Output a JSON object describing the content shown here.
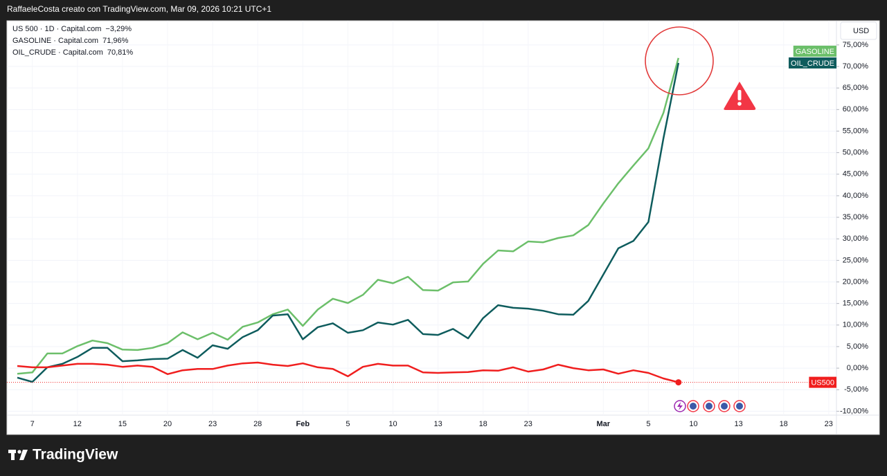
{
  "chart_data": {
    "type": "line",
    "title": "RaffaeleCosta creato con TradingView.com, Mar 09, 2026 10:21 UTC+1",
    "currency": "USD",
    "brand": "TradingView",
    "grid": true,
    "bold_categories": [
      "Feb",
      "Mar"
    ],
    "categories": [
      null,
      "7",
      null,
      null,
      "12",
      null,
      null,
      "15",
      null,
      null,
      "20",
      null,
      null,
      "23",
      null,
      null,
      "28",
      null,
      null,
      "Feb",
      null,
      null,
      "5",
      null,
      null,
      "10",
      null,
      null,
      "13",
      null,
      null,
      "18",
      null,
      null,
      "23",
      null,
      null,
      null,
      null,
      "Mar",
      null,
      null,
      "5",
      null,
      null,
      "10",
      null,
      null,
      "13",
      null,
      null,
      "18",
      null,
      null,
      "23"
    ],
    "series": [
      {
        "name": "US500",
        "legend": "US 500 · 1D · Capital.com",
        "change_label": "−3,29%",
        "color": "#f01e1e",
        "values": [
          0.5,
          0.2,
          0.2,
          0.6,
          1.0,
          1.0,
          0.8,
          0.3,
          0.6,
          0.3,
          -1.4,
          -0.5,
          -0.2,
          -0.2,
          0.6,
          1.1,
          1.3,
          0.8,
          0.5,
          1.1,
          0.2,
          -0.2,
          -1.9,
          0.3,
          1.0,
          0.6,
          0.6,
          -1.0,
          -1.1,
          -1.0,
          -0.9,
          -0.5,
          -0.6,
          0.2,
          -0.8,
          -0.3,
          0.8,
          0,
          -0.5,
          -0.3,
          -1.3,
          -0.5,
          -1.1,
          -2.4,
          -3.29,
          null,
          null,
          null,
          null,
          null,
          null,
          null,
          null,
          null,
          null
        ]
      },
      {
        "name": "GASOLINE",
        "legend": "GASOLINE · Capital.com",
        "change_label": "71,96%",
        "color": "#6cbf6a",
        "values": [
          -1.3,
          -1.0,
          3.4,
          3.4,
          5.1,
          6.4,
          5.8,
          4.3,
          4.2,
          4.7,
          5.8,
          8.3,
          6.7,
          8.2,
          6.6,
          9.6,
          10.6,
          12.5,
          13.6,
          9.8,
          13.6,
          16.1,
          15.1,
          17.0,
          20.5,
          19.7,
          21.2,
          18.1,
          18.0,
          19.9,
          20.1,
          24.2,
          27.3,
          27.1,
          29.4,
          29.2,
          30.2,
          30.8,
          33.2,
          38.2,
          42.9,
          47.0,
          51.0,
          59.2,
          71.96,
          null,
          null,
          null,
          null,
          null,
          null,
          null,
          null,
          null,
          null
        ]
      },
      {
        "name": "OIL_CRUDE",
        "legend": "OIL_CRUDE · Capital.com",
        "change_label": "70,81%",
        "color": "#0e5c5d",
        "values": [
          -2.2,
          -3.2,
          0.2,
          1.0,
          2.6,
          4.7,
          4.7,
          1.6,
          1.8,
          2.1,
          2.2,
          4.2,
          2.4,
          5.3,
          4.5,
          7.2,
          8.8,
          12.2,
          12.5,
          6.7,
          9.5,
          10.4,
          8.2,
          8.8,
          10.6,
          10.1,
          11.2,
          7.9,
          7.7,
          9.1,
          6.9,
          11.6,
          14.6,
          14.0,
          13.8,
          13.3,
          12.5,
          12.4,
          15.6,
          21.7,
          27.8,
          29.5,
          33.9,
          53.3,
          70.81,
          null,
          null,
          null,
          null,
          null,
          null,
          null,
          null,
          null,
          null
        ]
      }
    ],
    "ylim": [
      -10.9,
      80.6
    ],
    "yticks": [
      {
        "value": 75,
        "label": "75,00%"
      },
      {
        "value": 70,
        "label": "70,00%"
      },
      {
        "value": 65,
        "label": "65,00%"
      },
      {
        "value": 60,
        "label": "60,00%"
      },
      {
        "value": 55,
        "label": "55,00%"
      },
      {
        "value": 50,
        "label": "50,00%"
      },
      {
        "value": 45,
        "label": "45,00%"
      },
      {
        "value": 40,
        "label": "40,00%"
      },
      {
        "value": 35,
        "label": "35,00%"
      },
      {
        "value": 30,
        "label": "30,00%"
      },
      {
        "value": 25,
        "label": "25,00%"
      },
      {
        "value": 20,
        "label": "20,00%"
      },
      {
        "value": 15,
        "label": "15,00%"
      },
      {
        "value": 10,
        "label": "10,00%"
      },
      {
        "value": 5,
        "label": "5,00%"
      },
      {
        "value": 0,
        "label": "0,00%"
      },
      {
        "value": -5,
        "label": "-5,00%"
      },
      {
        "value": -10,
        "label": "-10,00%"
      }
    ]
  }
}
